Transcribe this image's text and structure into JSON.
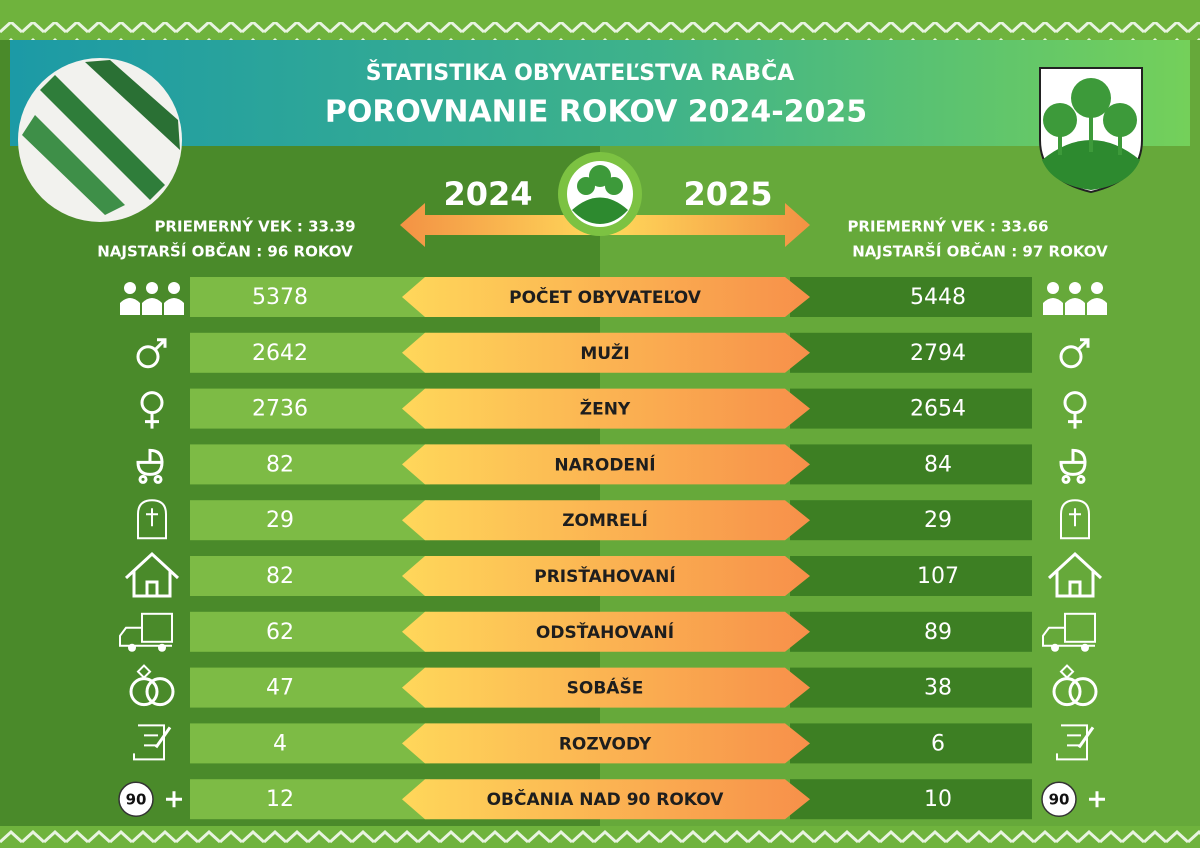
{
  "header": {
    "title": "ŠTATISTIKA OBYVATEĽSTVA RABČA",
    "subtitle": "POROVNANIE ROKOV 2024-2025"
  },
  "years": {
    "left": "2024",
    "right": "2025"
  },
  "left_info": [
    "PRIEMERNÝ VEK : 33.39",
    "NAJSTARŠÍ OBČAN : 96 ROKOV"
  ],
  "right_info": [
    "PRIEMERNÝ VEK : 33.66",
    "NAJSTARŠÍ OBČAN : 97 ROKOV"
  ],
  "age_badge": "90",
  "rows": [
    {
      "label": "POČET OBYVATEĽOV",
      "left": 5378,
      "right": 5448
    },
    {
      "label": "MUŽI",
      "left": 2642,
      "right": 2794
    },
    {
      "label": "ŽENY",
      "left": 2736,
      "right": 2654
    },
    {
      "label": "NARODENÍ",
      "left": 82,
      "right": 84
    },
    {
      "label": "ZOMRELÍ",
      "left": 29,
      "right": 29
    },
    {
      "label": "PRISŤAHOVANÍ",
      "left": 82,
      "right": 107
    },
    {
      "label": "ODSŤAHOVANÍ",
      "left": 62,
      "right": 89
    },
    {
      "label": "SOBÁŠE",
      "left": 47,
      "right": 38
    },
    {
      "label": "ROZVODY",
      "left": 4,
      "right": 6
    },
    {
      "label": "OBČANIA NAD 90 ROKOV",
      "left": 12,
      "right": 10
    }
  ]
}
